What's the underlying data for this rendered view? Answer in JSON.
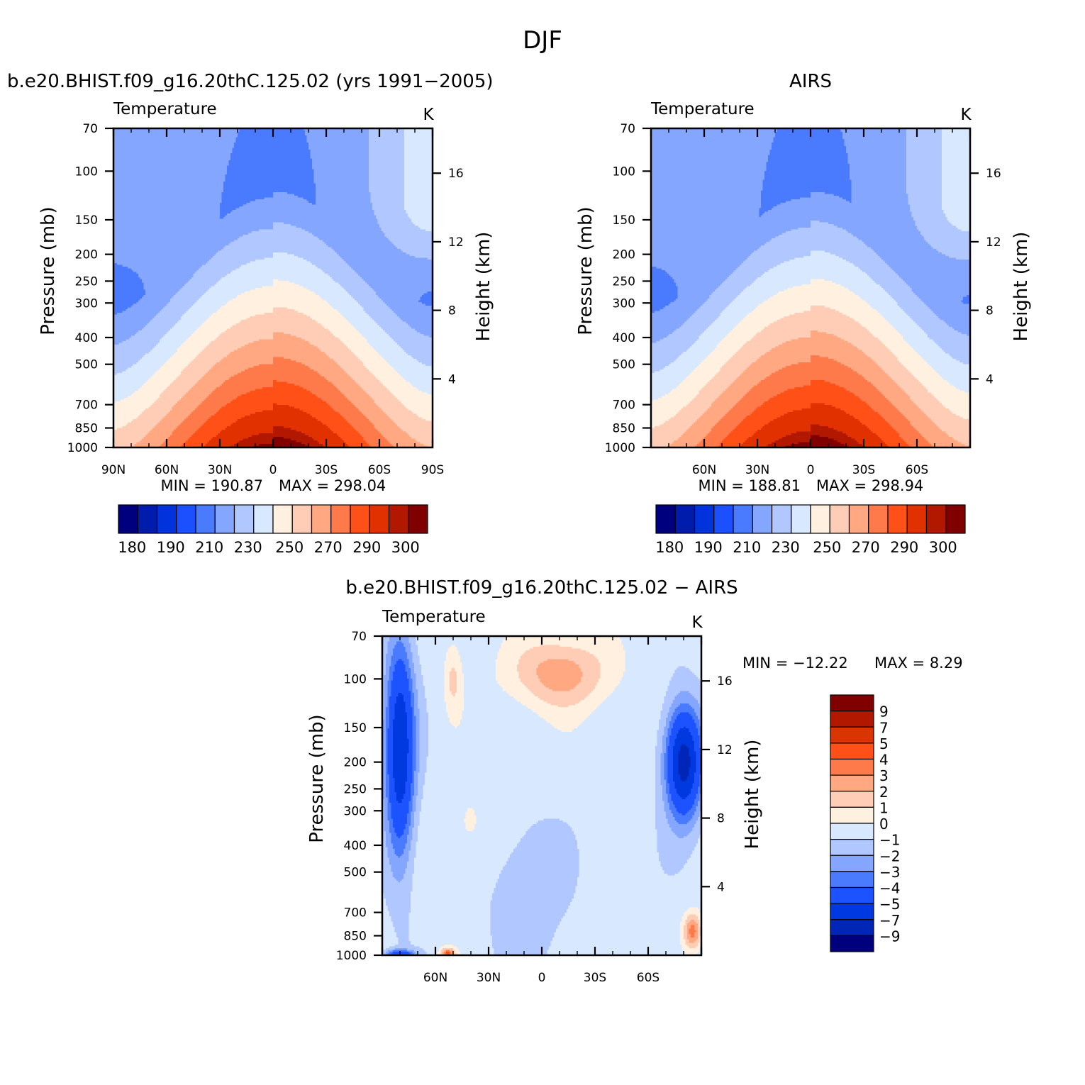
{
  "figure": {
    "title": "DJF",
    "colors": {
      "abs": [
        "#00007f",
        "#001cac",
        "#0033db",
        "#1c50ff",
        "#4a7bff",
        "#84a6ff",
        "#b0c8ff",
        "#d8e8ff",
        "#fff0e0",
        "#ffcdb5",
        "#ffa882",
        "#ff7a4a",
        "#ff5018",
        "#e13100",
        "#b21800",
        "#800000"
      ],
      "diff": [
        "#00007f",
        "#0026b8",
        "#0039e0",
        "#1c52ff",
        "#4a7bff",
        "#84a6ff",
        "#b0c8ff",
        "#d8e8ff",
        "#fff0e0",
        "#ffcdb5",
        "#ffa882",
        "#ff7a4a",
        "#ff5018",
        "#d93500",
        "#b21800",
        "#800000"
      ]
    }
  },
  "chart_data": [
    {
      "id": "model",
      "type": "heatmap",
      "title": "b.e20.BHIST.f09_g16.20thC.125.02 (yrs 1991-2005)",
      "field_label": "Temperature",
      "units": "K",
      "ylabel": "Pressure (mb)",
      "y2label": "Height (km)",
      "x_ticks": [
        "90N",
        "60N",
        "30N",
        "0",
        "30S",
        "60S",
        "90S"
      ],
      "x_tick_values": [
        90,
        60,
        30,
        0,
        -30,
        -60,
        -90
      ],
      "xlim": [
        90,
        -90
      ],
      "y_ticks": [
        70,
        100,
        150,
        200,
        250,
        300,
        400,
        500,
        700,
        850,
        1000
      ],
      "y2_ticks": [
        16,
        12,
        8,
        4
      ],
      "ylim": [
        1000,
        70
      ],
      "y_scale": "log",
      "min_text": "MIN = 190.87",
      "max_text": "MAX = 298.04",
      "min": 190.87,
      "max": 298.04,
      "colorbar": {
        "orientation": "horizontal",
        "levels": [
          175,
          180,
          185,
          190,
          200,
          210,
          220,
          230,
          240,
          250,
          260,
          270,
          280,
          290,
          295,
          300
        ],
        "labels": [
          "180",
          "190",
          "210",
          "230",
          "250",
          "270",
          "290",
          "300"
        ]
      }
    },
    {
      "id": "obs",
      "type": "heatmap",
      "title": "AIRS",
      "field_label": "Temperature",
      "units": "K",
      "ylabel": "Pressure (mb)",
      "y2label": "Height (km)",
      "x_ticks": [
        "60N",
        "30N",
        "0",
        "30S",
        "60S"
      ],
      "x_tick_values": [
        60,
        30,
        0,
        -30,
        -60
      ],
      "xlim": [
        90,
        -90
      ],
      "y_ticks": [
        70,
        100,
        150,
        200,
        250,
        300,
        400,
        500,
        700,
        850,
        1000
      ],
      "y2_ticks": [
        16,
        12,
        8,
        4
      ],
      "ylim": [
        1000,
        70
      ],
      "y_scale": "log",
      "min_text": "MIN = 188.81",
      "max_text": "MAX = 298.94",
      "min": 188.81,
      "max": 298.94,
      "colorbar": {
        "orientation": "horizontal",
        "levels": [
          175,
          180,
          185,
          190,
          200,
          210,
          220,
          230,
          240,
          250,
          260,
          270,
          280,
          290,
          295,
          300
        ],
        "labels": [
          "180",
          "190",
          "210",
          "230",
          "250",
          "270",
          "290",
          "300"
        ]
      }
    },
    {
      "id": "diff",
      "type": "heatmap",
      "title": "b.e20.BHIST.f09_g16.20thC.125.02 - AIRS",
      "field_label": "Temperature",
      "units": "K",
      "ylabel": "Pressure (mb)",
      "y2label": "Height (km)",
      "x_ticks": [
        "60N",
        "30N",
        "0",
        "30S",
        "60S"
      ],
      "x_tick_values": [
        60,
        30,
        0,
        -30,
        -60
      ],
      "xlim": [
        90,
        -90
      ],
      "y_ticks": [
        70,
        100,
        150,
        200,
        250,
        300,
        400,
        500,
        700,
        850,
        1000
      ],
      "y2_ticks": [
        16,
        12,
        8,
        4
      ],
      "ylim": [
        1000,
        70
      ],
      "y_scale": "log",
      "min_text": "MIN = -12.22",
      "max_text": "MAX =   8.29",
      "min": -12.22,
      "max": 8.29,
      "colorbar": {
        "orientation": "vertical",
        "levels": [
          -11,
          -9,
          -7,
          -5,
          -4,
          -3,
          -2,
          -1,
          0,
          1,
          2,
          3,
          4,
          5,
          7,
          9
        ],
        "labels": [
          "9",
          "7",
          "5",
          "4",
          "3",
          "2",
          "1",
          "0",
          "-1",
          "-2",
          "-3",
          "-4",
          "-5",
          "-7",
          "-9"
        ]
      }
    }
  ]
}
